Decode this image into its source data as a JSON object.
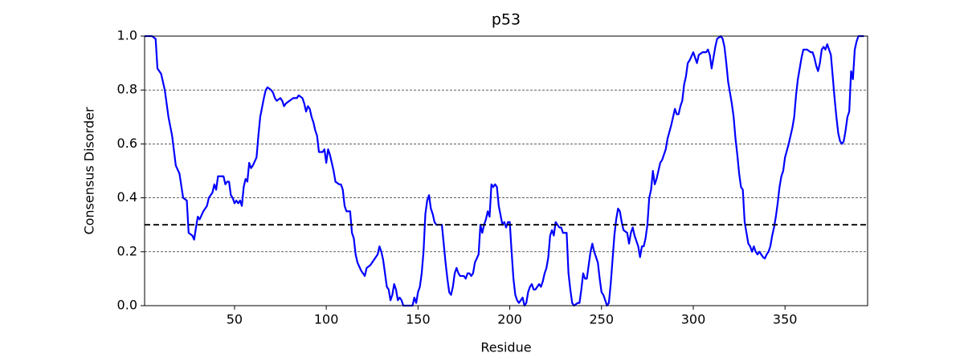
{
  "chart_data": {
    "type": "line",
    "title": "p53",
    "x_label": "Residue",
    "y_label": "Consensus Disorder",
    "xlim": [
      1,
      395
    ],
    "ylim": [
      0,
      1
    ],
    "xticks": [
      50,
      100,
      150,
      200,
      250,
      300,
      350
    ],
    "yticks": [
      {
        "value": 0,
        "label": "0.0"
      },
      0.2,
      0.4,
      0.6,
      0.8,
      {
        "value": 1,
        "label": "1.0"
      }
    ],
    "grid": true,
    "threshold": 0.3,
    "threshold_color": "#000000",
    "series": [
      {
        "color": "#0000ff",
        "x": [
          1,
          5,
          7,
          8,
          10,
          12,
          14,
          16,
          18,
          20,
          22,
          24,
          25,
          27,
          28,
          29,
          30,
          31,
          33,
          35,
          36,
          38,
          39,
          40,
          41,
          43,
          44,
          45,
          46,
          47,
          48,
          49,
          50,
          51,
          52,
          53,
          54,
          55,
          56,
          57,
          58,
          59,
          60,
          62,
          63,
          64,
          66,
          67,
          68,
          70,
          71,
          72,
          73,
          75,
          76,
          77,
          78,
          80,
          82,
          84,
          85,
          87,
          88,
          89,
          90,
          91,
          92,
          93,
          94,
          95,
          96,
          98,
          99,
          100,
          101,
          102,
          103,
          104,
          105,
          107,
          108,
          109,
          110,
          111,
          113,
          114,
          115,
          116,
          117,
          119,
          120,
          121,
          122,
          124,
          126,
          128,
          129,
          130,
          131,
          132,
          133,
          134,
          135,
          136,
          137,
          138,
          139,
          140,
          141,
          142,
          147,
          148,
          149,
          150,
          151,
          152,
          153,
          154,
          155,
          156,
          157,
          158,
          159,
          160,
          163,
          164,
          165,
          166,
          167,
          168,
          169,
          170,
          171,
          172,
          173,
          175,
          176,
          177,
          178,
          179,
          180,
          181,
          183,
          184,
          185,
          186,
          187,
          188,
          189,
          190,
          191,
          192,
          193,
          194,
          196,
          197,
          198,
          199,
          200,
          201,
          202,
          203,
          204,
          205,
          207,
          208,
          209,
          210,
          211,
          212,
          213,
          214,
          215,
          216,
          217,
          218,
          219,
          220,
          221,
          222,
          223,
          224,
          225,
          226,
          227,
          228,
          229,
          231,
          232,
          233,
          234,
          235,
          237,
          238,
          239,
          240,
          241,
          242,
          243,
          244,
          245,
          246,
          247,
          248,
          249,
          250,
          251,
          252,
          253,
          254,
          255,
          256,
          257,
          258,
          259,
          260,
          261,
          262,
          264,
          265,
          266,
          267,
          268,
          269,
          270,
          271,
          272,
          273,
          274,
          275,
          276,
          277,
          278,
          279,
          280,
          281,
          282,
          283,
          285,
          286,
          288,
          290,
          291,
          292,
          293,
          294,
          295,
          296,
          297,
          298,
          300,
          301,
          302,
          303,
          305,
          307,
          308,
          309,
          310,
          311,
          312,
          313,
          315,
          316,
          317,
          318,
          319,
          320,
          321,
          322,
          323,
          324,
          325,
          326,
          327,
          328,
          329,
          330,
          331,
          332,
          333,
          334,
          335,
          336,
          337,
          338,
          339,
          340,
          341,
          342,
          343,
          344,
          345,
          346,
          347,
          348,
          349,
          350,
          352,
          354,
          355,
          356,
          357,
          358,
          359,
          360,
          362,
          364,
          365,
          366,
          367,
          368,
          369,
          370,
          371,
          372,
          373,
          374,
          375,
          376,
          377,
          378,
          379,
          380,
          381,
          382,
          383,
          384,
          385,
          386,
          387,
          388,
          389,
          390,
          393
        ],
        "values": [
          1,
          1,
          0.99,
          0.88,
          0.86,
          0.8,
          0.7,
          0.63,
          0.52,
          0.49,
          0.4,
          0.39,
          0.27,
          0.26,
          0.245,
          0.29,
          0.33,
          0.32,
          0.35,
          0.37,
          0.4,
          0.42,
          0.45,
          0.43,
          0.48,
          0.48,
          0.48,
          0.45,
          0.46,
          0.46,
          0.41,
          0.4,
          0.38,
          0.39,
          0.38,
          0.39,
          0.37,
          0.44,
          0.47,
          0.46,
          0.53,
          0.51,
          0.52,
          0.55,
          0.63,
          0.7,
          0.77,
          0.8,
          0.81,
          0.8,
          0.79,
          0.77,
          0.76,
          0.77,
          0.76,
          0.74,
          0.75,
          0.76,
          0.77,
          0.77,
          0.78,
          0.77,
          0.75,
          0.72,
          0.74,
          0.73,
          0.7,
          0.68,
          0.65,
          0.63,
          0.57,
          0.57,
          0.58,
          0.53,
          0.58,
          0.56,
          0.53,
          0.5,
          0.46,
          0.45,
          0.45,
          0.43,
          0.37,
          0.35,
          0.35,
          0.27,
          0.25,
          0.19,
          0.16,
          0.13,
          0.12,
          0.11,
          0.14,
          0.15,
          0.17,
          0.19,
          0.22,
          0.2,
          0.17,
          0.12,
          0.07,
          0.06,
          0.02,
          0.04,
          0.08,
          0.06,
          0.02,
          0.03,
          0.02,
          0,
          0,
          0.03,
          0.01,
          0.05,
          0.07,
          0.12,
          0.2,
          0.34,
          0.39,
          0.41,
          0.36,
          0.34,
          0.31,
          0.3,
          0.3,
          0.23,
          0.16,
          0.1,
          0.05,
          0.04,
          0.07,
          0.12,
          0.14,
          0.12,
          0.11,
          0.11,
          0.1,
          0.12,
          0.12,
          0.11,
          0.12,
          0.16,
          0.19,
          0.3,
          0.27,
          0.3,
          0.32,
          0.35,
          0.33,
          0.45,
          0.44,
          0.45,
          0.44,
          0.37,
          0.3,
          0.31,
          0.29,
          0.31,
          0.31,
          0.2,
          0.1,
          0.04,
          0.02,
          0.01,
          0.03,
          0,
          0.01,
          0.05,
          0.07,
          0.08,
          0.06,
          0.06,
          0.07,
          0.08,
          0.07,
          0.09,
          0.12,
          0.14,
          0.18,
          0.26,
          0.28,
          0.26,
          0.31,
          0.3,
          0.29,
          0.29,
          0.27,
          0.27,
          0.12,
          0.06,
          0.01,
          0,
          0.01,
          0.01,
          0.06,
          0.12,
          0.1,
          0.1,
          0.15,
          0.2,
          0.23,
          0.2,
          0.18,
          0.16,
          0.1,
          0.05,
          0.04,
          0.02,
          0,
          0.01,
          0.08,
          0.17,
          0.26,
          0.32,
          0.36,
          0.35,
          0.31,
          0.28,
          0.27,
          0.23,
          0.27,
          0.29,
          0.26,
          0.24,
          0.22,
          0.18,
          0.22,
          0.22,
          0.25,
          0.3,
          0.4,
          0.43,
          0.5,
          0.45,
          0.47,
          0.5,
          0.53,
          0.54,
          0.58,
          0.62,
          0.67,
          0.73,
          0.71,
          0.71,
          0.74,
          0.76,
          0.82,
          0.85,
          0.9,
          0.91,
          0.94,
          0.92,
          0.9,
          0.93,
          0.94,
          0.94,
          0.95,
          0.93,
          0.88,
          0.92,
          0.96,
          0.99,
          1,
          0.99,
          0.96,
          0.9,
          0.83,
          0.79,
          0.75,
          0.7,
          0.62,
          0.56,
          0.49,
          0.44,
          0.43,
          0.31,
          0.27,
          0.23,
          0.22,
          0.2,
          0.22,
          0.2,
          0.19,
          0.2,
          0.19,
          0.18,
          0.175,
          0.19,
          0.2,
          0.22,
          0.26,
          0.29,
          0.33,
          0.38,
          0.44,
          0.48,
          0.5,
          0.55,
          0.6,
          0.66,
          0.7,
          0.78,
          0.84,
          0.88,
          0.92,
          0.95,
          0.95,
          0.94,
          0.94,
          0.92,
          0.89,
          0.87,
          0.9,
          0.95,
          0.96,
          0.95,
          0.97,
          0.95,
          0.93,
          0.85,
          0.77,
          0.7,
          0.64,
          0.61,
          0.6,
          0.61,
          0.65,
          0.7,
          0.72,
          0.87,
          0.84,
          0.95,
          0.98,
          1,
          1
        ]
      }
    ]
  }
}
